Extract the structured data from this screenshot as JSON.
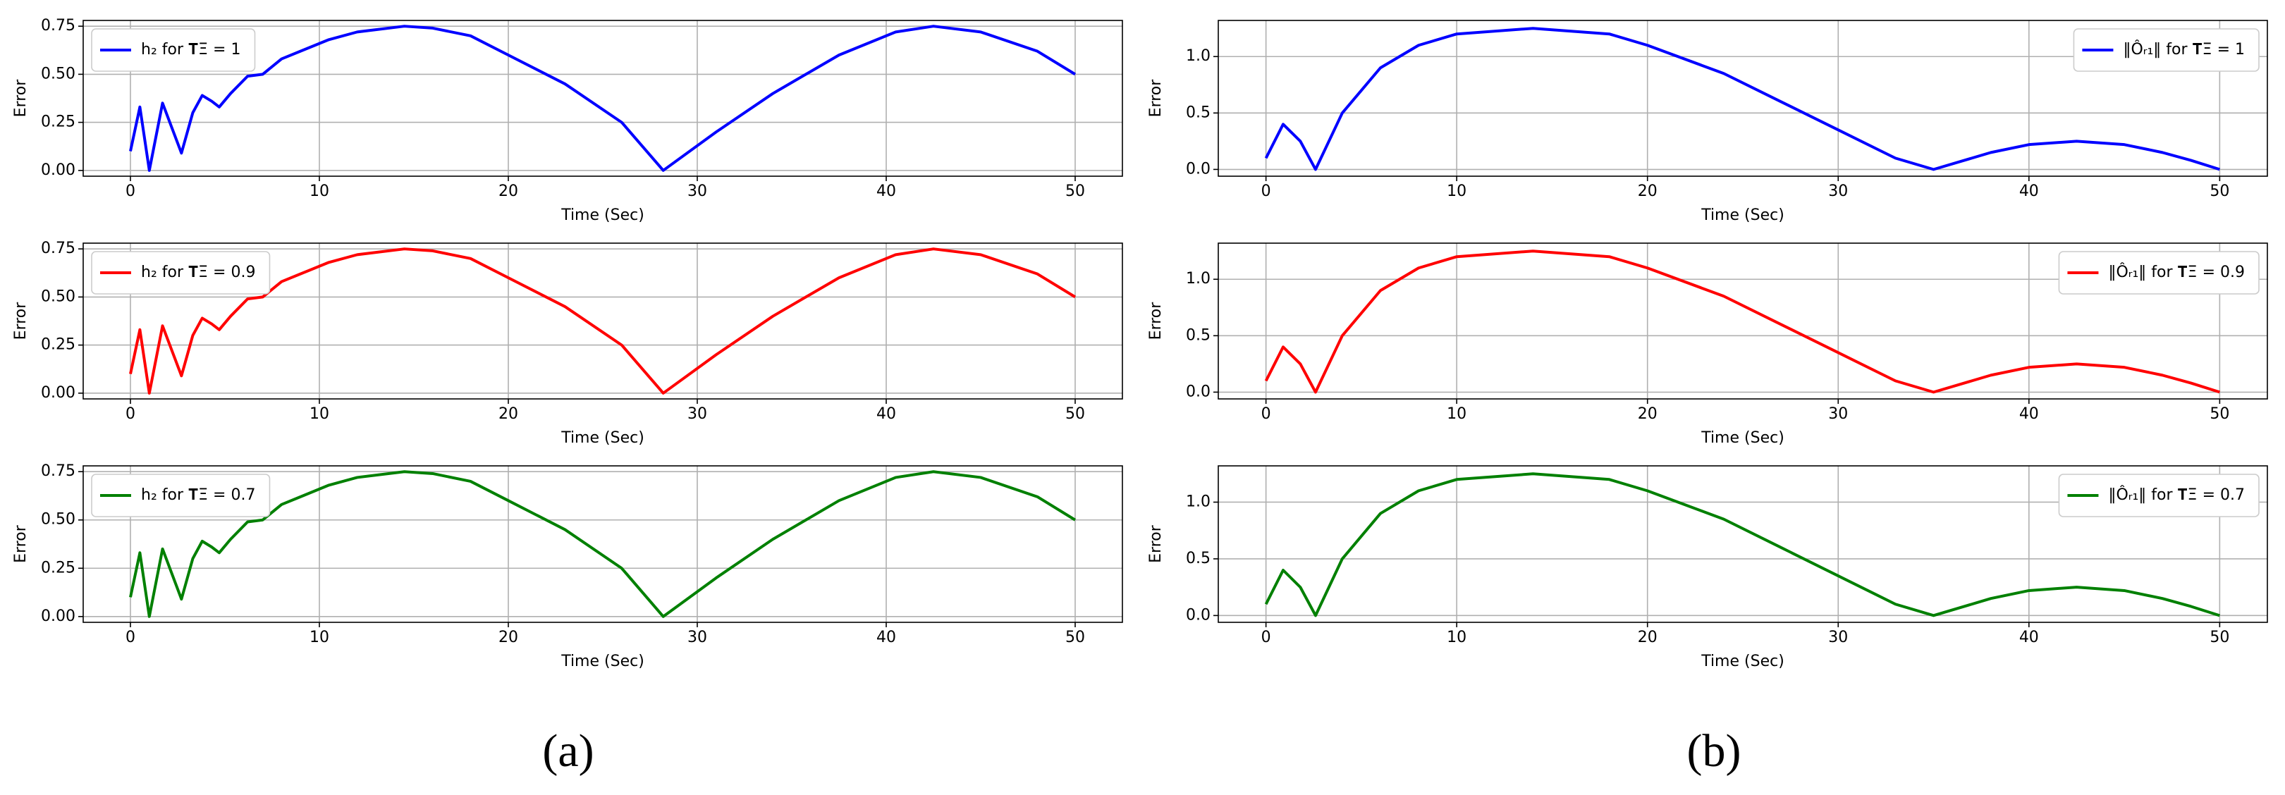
{
  "chart_data": [
    {
      "type": "line",
      "x_label": "Time (Sec)",
      "y_label": "Error",
      "legend": "upper left",
      "grid": true,
      "x": [
        0,
        0.5,
        1.0,
        1.7,
        2.2,
        2.7,
        3.3,
        3.8,
        4.3,
        4.7,
        5.3,
        6.2,
        7,
        8,
        9,
        10.5,
        12,
        14.5,
        16,
        18,
        20,
        23,
        26,
        28.2,
        31,
        34,
        37.5,
        40.5,
        42.5,
        45,
        48,
        50
      ],
      "series": [
        {
          "name": "h₂ for 𝐓Ξ = 1",
          "color": "#0000ff",
          "values": [
            0.1,
            0.33,
            0,
            0.35,
            0.22,
            0.09,
            0.3,
            0.39,
            0.36,
            0.33,
            0.4,
            0.49,
            0.5,
            0.58,
            0.62,
            0.68,
            0.72,
            0.75,
            0.74,
            0.7,
            0.6,
            0.45,
            0.25,
            0,
            0.2,
            0.4,
            0.6,
            0.72,
            0.75,
            0.72,
            0.62,
            0.5
          ]
        }
      ],
      "xlim": [
        -2.5,
        52.5
      ],
      "xticks": [
        0,
        10,
        20,
        30,
        40,
        50
      ],
      "ylim": [
        -0.03,
        0.78
      ],
      "yticks": [
        {
          "value": 0,
          "label": "0.00"
        },
        {
          "value": 0.25,
          "label": "0.25"
        },
        {
          "value": 0.5,
          "label": "0.50"
        },
        {
          "value": 0.75,
          "label": "0.75"
        }
      ]
    },
    {
      "type": "line",
      "x_label": "Time (Sec)",
      "y_label": "Error",
      "legend": "upper right",
      "grid": true,
      "x": [
        0,
        0.9,
        1.8,
        2.6,
        4,
        6,
        8,
        10,
        14,
        18,
        20,
        24,
        27,
        30,
        33,
        35,
        38,
        40,
        42.5,
        45,
        47,
        48.5,
        50
      ],
      "series": [
        {
          "name": "‖Ôᵣ₁‖ for 𝐓Ξ = 1",
          "color": "#0000ff",
          "values": [
            0.1,
            0.4,
            0.25,
            0,
            0.5,
            0.9,
            1.1,
            1.2,
            1.25,
            1.2,
            1.1,
            0.85,
            0.6,
            0.35,
            0.1,
            0,
            0.15,
            0.22,
            0.25,
            0.22,
            0.15,
            0.08,
            0
          ]
        }
      ],
      "xlim": [
        -2.5,
        52.5
      ],
      "xticks": [
        0,
        10,
        20,
        30,
        40,
        50
      ],
      "ylim": [
        -0.06,
        1.32
      ],
      "yticks": [
        {
          "value": 0,
          "label": "0.0"
        },
        {
          "value": 0.5,
          "label": "0.5"
        },
        {
          "value": 1,
          "label": "1.0"
        }
      ]
    },
    {
      "type": "line",
      "x_label": "Time (Sec)",
      "y_label": "Error",
      "legend": "upper left",
      "grid": true,
      "x": [
        0,
        0.5,
        1.0,
        1.7,
        2.2,
        2.7,
        3.3,
        3.8,
        4.3,
        4.7,
        5.3,
        6.2,
        7,
        8,
        9,
        10.5,
        12,
        14.5,
        16,
        18,
        20,
        23,
        26,
        28.2,
        31,
        34,
        37.5,
        40.5,
        42.5,
        45,
        48,
        50
      ],
      "series": [
        {
          "name": "h₂ for 𝐓Ξ = 0.9",
          "color": "#ff0000",
          "values": [
            0.1,
            0.33,
            0,
            0.35,
            0.22,
            0.09,
            0.3,
            0.39,
            0.36,
            0.33,
            0.4,
            0.49,
            0.5,
            0.58,
            0.62,
            0.68,
            0.72,
            0.75,
            0.74,
            0.7,
            0.6,
            0.45,
            0.25,
            0,
            0.2,
            0.4,
            0.6,
            0.72,
            0.75,
            0.72,
            0.62,
            0.5
          ]
        }
      ],
      "xlim": [
        -2.5,
        52.5
      ],
      "xticks": [
        0,
        10,
        20,
        30,
        40,
        50
      ],
      "ylim": [
        -0.03,
        0.78
      ],
      "yticks": [
        {
          "value": 0,
          "label": "0.00"
        },
        {
          "value": 0.25,
          "label": "0.25"
        },
        {
          "value": 0.5,
          "label": "0.50"
        },
        {
          "value": 0.75,
          "label": "0.75"
        }
      ]
    },
    {
      "type": "line",
      "x_label": "Time (Sec)",
      "y_label": "Error",
      "legend": "upper right",
      "grid": true,
      "x": [
        0,
        0.9,
        1.8,
        2.6,
        4,
        6,
        8,
        10,
        14,
        18,
        20,
        24,
        27,
        30,
        33,
        35,
        38,
        40,
        42.5,
        45,
        47,
        48.5,
        50
      ],
      "series": [
        {
          "name": "‖Ôᵣ₁‖ for 𝐓Ξ = 0.9",
          "color": "#ff0000",
          "values": [
            0.1,
            0.4,
            0.25,
            0,
            0.5,
            0.9,
            1.1,
            1.2,
            1.25,
            1.2,
            1.1,
            0.85,
            0.6,
            0.35,
            0.1,
            0,
            0.15,
            0.22,
            0.25,
            0.22,
            0.15,
            0.08,
            0
          ]
        }
      ],
      "xlim": [
        -2.5,
        52.5
      ],
      "xticks": [
        0,
        10,
        20,
        30,
        40,
        50
      ],
      "ylim": [
        -0.06,
        1.32
      ],
      "yticks": [
        {
          "value": 0,
          "label": "0.0"
        },
        {
          "value": 0.5,
          "label": "0.5"
        },
        {
          "value": 1,
          "label": "1.0"
        }
      ]
    },
    {
      "type": "line",
      "x_label": "Time (Sec)",
      "y_label": "Error",
      "legend": "upper left",
      "grid": true,
      "x": [
        0,
        0.5,
        1.0,
        1.7,
        2.2,
        2.7,
        3.3,
        3.8,
        4.3,
        4.7,
        5.3,
        6.2,
        7,
        8,
        9,
        10.5,
        12,
        14.5,
        16,
        18,
        20,
        23,
        26,
        28.2,
        31,
        34,
        37.5,
        40.5,
        42.5,
        45,
        48,
        50
      ],
      "series": [
        {
          "name": "h₂ for 𝐓Ξ = 0.7",
          "color": "#008000",
          "values": [
            0.1,
            0.33,
            0,
            0.35,
            0.22,
            0.09,
            0.3,
            0.39,
            0.36,
            0.33,
            0.4,
            0.49,
            0.5,
            0.58,
            0.62,
            0.68,
            0.72,
            0.75,
            0.74,
            0.7,
            0.6,
            0.45,
            0.25,
            0,
            0.2,
            0.4,
            0.6,
            0.72,
            0.75,
            0.72,
            0.62,
            0.5
          ]
        }
      ],
      "xlim": [
        -2.5,
        52.5
      ],
      "xticks": [
        0,
        10,
        20,
        30,
        40,
        50
      ],
      "ylim": [
        -0.03,
        0.78
      ],
      "yticks": [
        {
          "value": 0,
          "label": "0.00"
        },
        {
          "value": 0.25,
          "label": "0.25"
        },
        {
          "value": 0.5,
          "label": "0.50"
        },
        {
          "value": 0.75,
          "label": "0.75"
        }
      ]
    },
    {
      "type": "line",
      "x_label": "Time (Sec)",
      "y_label": "Error",
      "legend": "upper right",
      "grid": true,
      "x": [
        0,
        0.9,
        1.8,
        2.6,
        4,
        6,
        8,
        10,
        14,
        18,
        20,
        24,
        27,
        30,
        33,
        35,
        38,
        40,
        42.5,
        45,
        47,
        48.5,
        50
      ],
      "series": [
        {
          "name": "‖Ôᵣ₁‖ for 𝐓Ξ = 0.7",
          "color": "#008000",
          "values": [
            0.1,
            0.4,
            0.25,
            0,
            0.5,
            0.9,
            1.1,
            1.2,
            1.25,
            1.2,
            1.1,
            0.85,
            0.6,
            0.35,
            0.1,
            0,
            0.15,
            0.22,
            0.25,
            0.22,
            0.15,
            0.08,
            0
          ]
        }
      ],
      "xlim": [
        -2.5,
        52.5
      ],
      "xticks": [
        0,
        10,
        20,
        30,
        40,
        50
      ],
      "ylim": [
        -0.06,
        1.32
      ],
      "yticks": [
        {
          "value": 0,
          "label": "0.0"
        },
        {
          "value": 0.5,
          "label": "0.5"
        },
        {
          "value": 1,
          "label": "1.0"
        }
      ]
    }
  ],
  "captions": [
    "(a)",
    "(b)"
  ]
}
